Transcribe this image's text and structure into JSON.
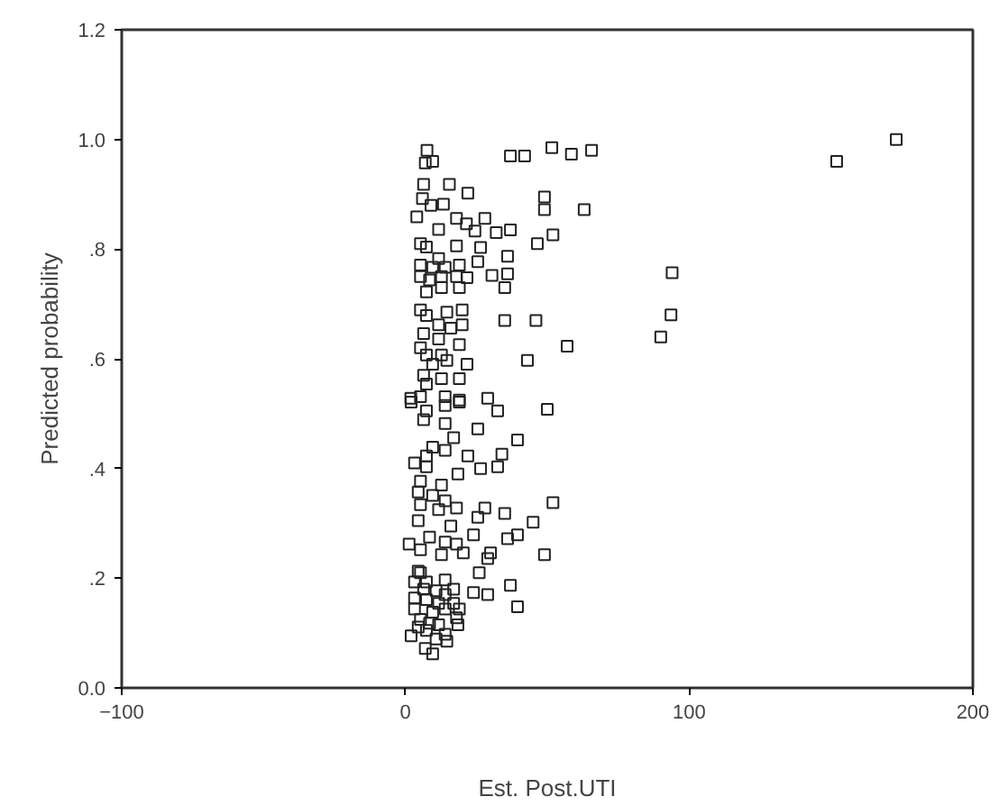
{
  "chart_data": {
    "type": "scatter",
    "xlabel": "Est. Post.UTI",
    "ylabel": "Predicted probability",
    "xlim": [
      -100,
      200
    ],
    "ylim": [
      0,
      1.2
    ],
    "xticks": [
      -100,
      0,
      100,
      200
    ],
    "yticks": [
      {
        "value": 0,
        "label": "0.0"
      },
      {
        "value": 0.2,
        "label": ".2"
      },
      {
        "value": 0.4,
        "label": ".4"
      },
      {
        "value": 0.6,
        "label": ".6"
      },
      {
        "value": 0.8,
        "label": ".8"
      },
      {
        "value": 1.0,
        "label": "1.0"
      },
      {
        "value": 1.2,
        "label": "1.2"
      }
    ],
    "grid": false,
    "marker": "square",
    "series": [
      {
        "color": "#222222",
        "x": [
          173,
          152,
          94,
          93.6,
          90,
          37,
          42,
          51.6,
          58.5,
          65.6,
          49,
          49,
          63,
          32,
          37,
          52,
          46.5,
          36,
          36,
          30.5,
          35,
          35,
          46,
          57,
          43,
          32.5,
          50,
          39.5,
          34,
          32.5,
          52,
          35,
          45,
          39.5,
          36,
          49,
          30,
          37,
          39.5,
          29,
          7.6,
          7,
          9.6,
          6.4,
          15.5,
          22,
          6,
          9,
          13.4,
          4,
          18,
          21.5,
          28,
          11.7,
          24.5,
          5.3,
          7.4,
          18,
          26.5,
          11.7,
          19,
          25.5,
          5.3,
          9.6,
          14,
          5.3,
          8.5,
          12.7,
          18,
          21.7,
          7.4,
          12.7,
          19,
          5.3,
          7.4,
          14.6,
          20,
          11.7,
          16,
          20,
          6.4,
          11.7,
          19,
          5.3,
          7.4,
          12.7,
          9.6,
          14.6,
          21.7,
          6.4,
          12.7,
          19,
          7.4,
          1.9,
          5.3,
          14,
          19,
          29,
          2,
          7.4,
          14,
          19,
          14,
          6.4,
          25.5,
          17,
          9.6,
          14,
          7.4,
          3.2,
          22,
          7.4,
          18.5,
          26.5,
          5.3,
          12.7,
          4.5,
          9.6,
          14,
          5.3,
          11.7,
          18,
          28,
          25.5,
          4.5,
          16,
          24,
          8.5,
          14,
          1.3,
          18,
          5.3,
          12.7,
          20.4,
          29,
          4.5,
          26,
          5.3,
          14,
          3.2,
          7.4,
          17,
          6.4,
          10.8,
          14,
          24,
          3.2,
          7.4,
          11.7,
          17,
          19,
          3.2,
          9.6,
          14,
          18,
          5.3,
          8.5,
          11.7,
          18.5,
          4.5,
          7.4,
          14,
          2,
          10.8,
          14.6,
          7,
          9.6
        ],
        "values": [
          1.0,
          0.96,
          0.757,
          0.68,
          0.64,
          0.97,
          0.97,
          0.985,
          0.973,
          0.98,
          0.895,
          0.872,
          0.872,
          0.83,
          0.835,
          0.826,
          0.81,
          0.787,
          0.755,
          0.752,
          0.73,
          0.67,
          0.67,
          0.623,
          0.597,
          0.505,
          0.508,
          0.452,
          0.426,
          0.403,
          0.338,
          0.318,
          0.302,
          0.279,
          0.272,
          0.243,
          0.246,
          0.187,
          0.148,
          0.17,
          0.98,
          0.957,
          0.96,
          0.918,
          0.918,
          0.902,
          0.892,
          0.88,
          0.882,
          0.859,
          0.856,
          0.846,
          0.856,
          0.836,
          0.833,
          0.81,
          0.804,
          0.806,
          0.803,
          0.783,
          0.771,
          0.777,
          0.771,
          0.767,
          0.767,
          0.75,
          0.744,
          0.75,
          0.75,
          0.748,
          0.722,
          0.73,
          0.73,
          0.689,
          0.679,
          0.685,
          0.689,
          0.662,
          0.656,
          0.662,
          0.646,
          0.636,
          0.626,
          0.62,
          0.607,
          0.607,
          0.59,
          0.597,
          0.59,
          0.57,
          0.564,
          0.564,
          0.554,
          0.528,
          0.531,
          0.531,
          0.525,
          0.528,
          0.521,
          0.505,
          0.515,
          0.521,
          0.482,
          0.489,
          0.472,
          0.456,
          0.439,
          0.433,
          0.423,
          0.41,
          0.423,
          0.403,
          0.39,
          0.4,
          0.377,
          0.37,
          0.357,
          0.351,
          0.341,
          0.334,
          0.325,
          0.328,
          0.328,
          0.311,
          0.305,
          0.295,
          0.279,
          0.275,
          0.266,
          0.262,
          0.262,
          0.252,
          0.243,
          0.246,
          0.236,
          0.213,
          0.21,
          0.21,
          0.197,
          0.193,
          0.193,
          0.18,
          0.18,
          0.177,
          0.17,
          0.174,
          0.164,
          0.161,
          0.154,
          0.154,
          0.144,
          0.144,
          0.138,
          0.144,
          0.128,
          0.125,
          0.118,
          0.115,
          0.115,
          0.111,
          0.105,
          0.098,
          0.095,
          0.089,
          0.085,
          0.072,
          0.062
        ]
      }
    ]
  }
}
